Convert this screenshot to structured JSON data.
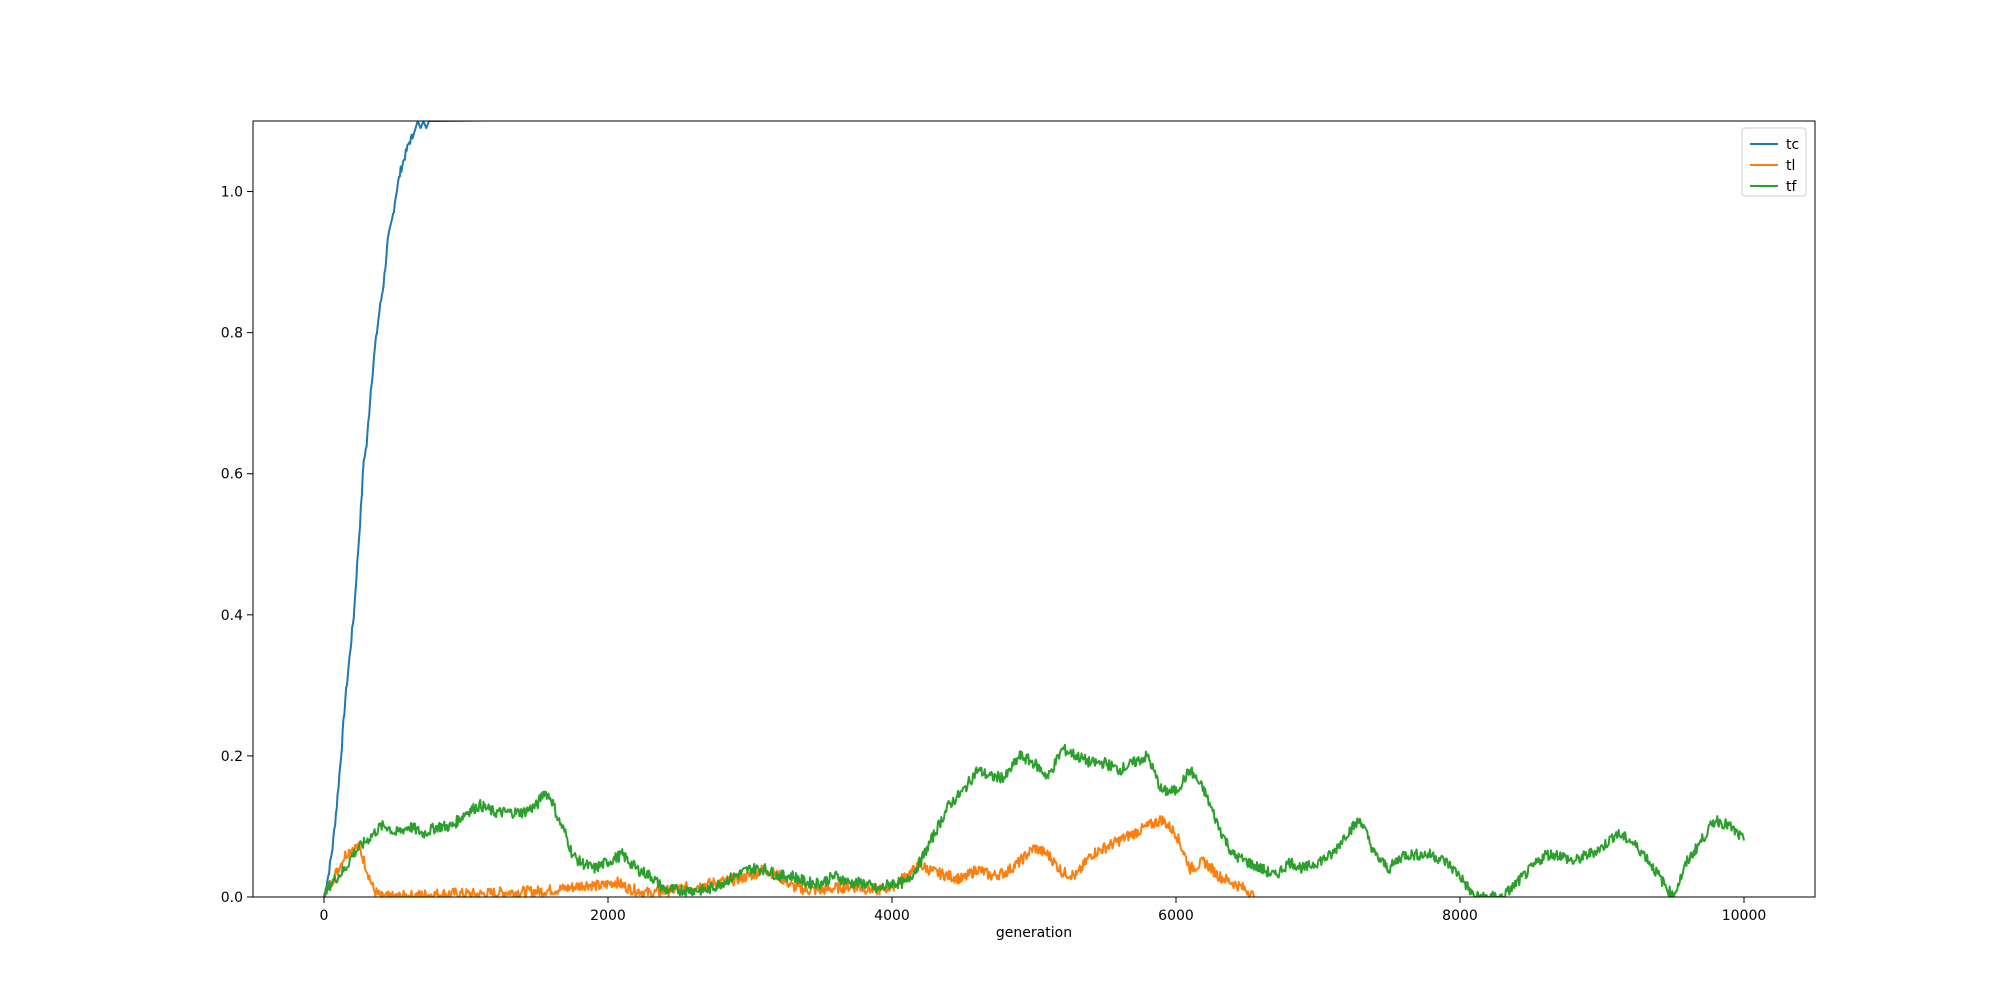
{
  "chart_data": {
    "type": "line",
    "title": "",
    "xlabel": "generation",
    "ylabel": "",
    "xlim": [
      -500,
      10500
    ],
    "ylim": [
      0.0,
      1.1
    ],
    "xticks": [
      "0",
      "2000",
      "4000",
      "6000",
      "8000",
      "10000"
    ],
    "yticks": [
      "0.0",
      "0.2",
      "0.4",
      "0.6",
      "0.8",
      "1.0"
    ],
    "grid": false,
    "legend_position": "upper right",
    "series": [
      {
        "name": "tc",
        "color": "#1f77b4",
        "x": [
          0,
          30,
          60,
          90,
          120,
          150,
          180,
          210,
          240,
          260,
          280,
          300,
          330,
          360,
          390,
          420,
          450,
          480,
          510,
          540,
          570,
          600,
          630,
          660,
          680,
          700,
          720,
          740,
          760,
          780,
          800
        ],
        "y": [
          0.0,
          0.03,
          0.07,
          0.13,
          0.2,
          0.28,
          0.34,
          0.4,
          0.49,
          0.55,
          0.62,
          0.64,
          0.72,
          0.78,
          0.83,
          0.87,
          0.93,
          0.96,
          1.0,
          1.03,
          1.05,
          1.07,
          1.08,
          1.1,
          1.09,
          1.1,
          1.09,
          1.1,
          1.1,
          1.1,
          1.1
        ]
      },
      {
        "name": "tl",
        "color": "#ff7f0e",
        "x": [
          0,
          50,
          100,
          150,
          200,
          250,
          300,
          350,
          400,
          500,
          700,
          900,
          1100,
          1300,
          1500,
          1700,
          1850,
          1950,
          2050,
          2150,
          2300,
          2450,
          2600,
          2750,
          2900,
          3000,
          3100,
          3200,
          3300,
          3400,
          3500,
          3700,
          3900,
          4000,
          4100,
          4200,
          4300,
          4400,
          4500,
          4600,
          4700,
          4800,
          4900,
          5000,
          5100,
          5200,
          5300,
          5400,
          5500,
          5600,
          5700,
          5800,
          5900,
          6000,
          6100,
          6200,
          6300,
          6400,
          6500,
          6550
        ],
        "y": [
          0.0,
          0.02,
          0.04,
          0.06,
          0.07,
          0.07,
          0.04,
          0.01,
          0.0,
          0.0,
          0.003,
          0.005,
          0.004,
          0.007,
          0.008,
          0.012,
          0.018,
          0.015,
          0.022,
          0.012,
          0.005,
          0.01,
          0.015,
          0.02,
          0.025,
          0.03,
          0.04,
          0.03,
          0.015,
          0.01,
          0.01,
          0.015,
          0.01,
          0.015,
          0.03,
          0.045,
          0.035,
          0.03,
          0.025,
          0.04,
          0.03,
          0.035,
          0.05,
          0.07,
          0.06,
          0.035,
          0.03,
          0.06,
          0.07,
          0.08,
          0.09,
          0.1,
          0.11,
          0.09,
          0.04,
          0.05,
          0.03,
          0.02,
          0.01,
          0.0
        ]
      },
      {
        "name": "tf",
        "color": "#2ca02c",
        "x": [
          0,
          50,
          100,
          150,
          200,
          250,
          300,
          350,
          400,
          450,
          500,
          600,
          700,
          800,
          900,
          1000,
          1100,
          1200,
          1300,
          1400,
          1500,
          1550,
          1600,
          1650,
          1700,
          1750,
          1800,
          1900,
          2000,
          2100,
          2200,
          2300,
          2400,
          2500,
          2600,
          2700,
          2800,
          2900,
          3000,
          3100,
          3200,
          3300,
          3400,
          3500,
          3600,
          3700,
          3800,
          3900,
          4000,
          4100,
          4200,
          4300,
          4400,
          4500,
          4600,
          4700,
          4800,
          4900,
          5000,
          5100,
          5200,
          5300,
          5400,
          5500,
          5600,
          5700,
          5800,
          5900,
          6000,
          6100,
          6200,
          6300,
          6400,
          6500,
          6600,
          6700,
          6800,
          6900,
          7000,
          7100,
          7200,
          7300,
          7400,
          7500,
          7600,
          7700,
          7800,
          7900,
          8000,
          8100,
          8200,
          8300,
          8400,
          8500,
          8600,
          8700,
          8800,
          8900,
          9000,
          9100,
          9200,
          9300,
          9400,
          9500,
          9600,
          9700,
          9800,
          9900,
          10000
        ],
        "y": [
          0.0,
          0.02,
          0.03,
          0.04,
          0.06,
          0.07,
          0.08,
          0.09,
          0.1,
          0.1,
          0.09,
          0.1,
          0.09,
          0.1,
          0.1,
          0.12,
          0.13,
          0.12,
          0.12,
          0.12,
          0.13,
          0.15,
          0.14,
          0.11,
          0.09,
          0.06,
          0.05,
          0.04,
          0.05,
          0.06,
          0.04,
          0.03,
          0.01,
          0.01,
          0.01,
          0.01,
          0.02,
          0.03,
          0.04,
          0.04,
          0.03,
          0.03,
          0.02,
          0.02,
          0.03,
          0.02,
          0.02,
          0.01,
          0.02,
          0.02,
          0.05,
          0.09,
          0.13,
          0.15,
          0.18,
          0.17,
          0.17,
          0.2,
          0.19,
          0.17,
          0.21,
          0.2,
          0.19,
          0.19,
          0.18,
          0.19,
          0.2,
          0.15,
          0.15,
          0.18,
          0.15,
          0.1,
          0.06,
          0.05,
          0.04,
          0.03,
          0.05,
          0.04,
          0.05,
          0.06,
          0.09,
          0.11,
          0.06,
          0.04,
          0.06,
          0.06,
          0.06,
          0.05,
          0.03,
          0.0,
          0.0,
          0.0,
          0.02,
          0.04,
          0.06,
          0.06,
          0.05,
          0.06,
          0.07,
          0.09,
          0.08,
          0.06,
          0.03,
          0.0,
          0.05,
          0.08,
          0.11,
          0.1,
          0.08
        ]
      }
    ]
  }
}
